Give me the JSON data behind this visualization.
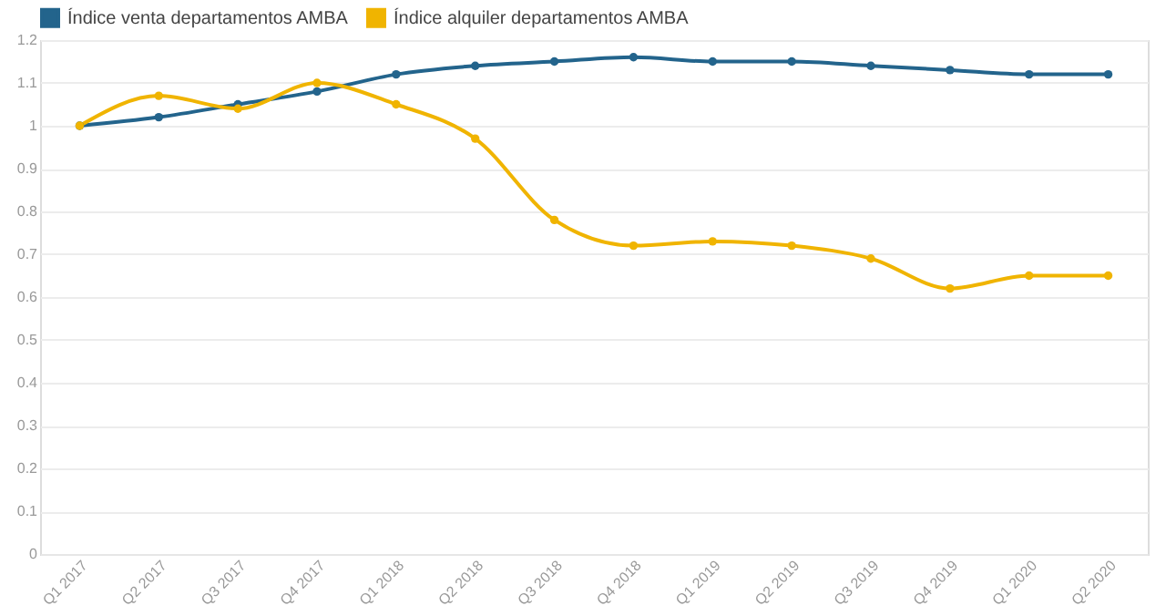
{
  "chart_data": {
    "type": "line",
    "categories": [
      "Q1 2017",
      "Q2 2017",
      "Q3 2017",
      "Q4 2017",
      "Q1 2018",
      "Q2 2018",
      "Q3 2018",
      "Q4 2018",
      "Q1 2019",
      "Q2 2019",
      "Q3 2019",
      "Q4 2019",
      "Q1 2020",
      "Q2 2020"
    ],
    "series": [
      {
        "name": "Índice venta departamentos AMBA",
        "color": "#23648c",
        "values": [
          1.0,
          1.02,
          1.05,
          1.08,
          1.12,
          1.14,
          1.15,
          1.16,
          1.15,
          1.15,
          1.14,
          1.13,
          1.12,
          1.12
        ]
      },
      {
        "name": "Índice alquiler departamentos AMBA",
        "color": "#f0b400",
        "values": [
          1.0,
          1.07,
          1.04,
          1.1,
          1.05,
          0.97,
          0.78,
          0.72,
          0.73,
          0.72,
          0.69,
          0.62,
          0.65,
          0.65
        ]
      }
    ],
    "ylim": [
      0,
      1.2
    ],
    "yticks": [
      0,
      0.1,
      0.2,
      0.3,
      0.4,
      0.5,
      0.6,
      0.7,
      0.8,
      0.9,
      1,
      1.1,
      1.2
    ],
    "grid": "y",
    "legend": "top left",
    "marker": "circle",
    "line_style": "solid"
  }
}
